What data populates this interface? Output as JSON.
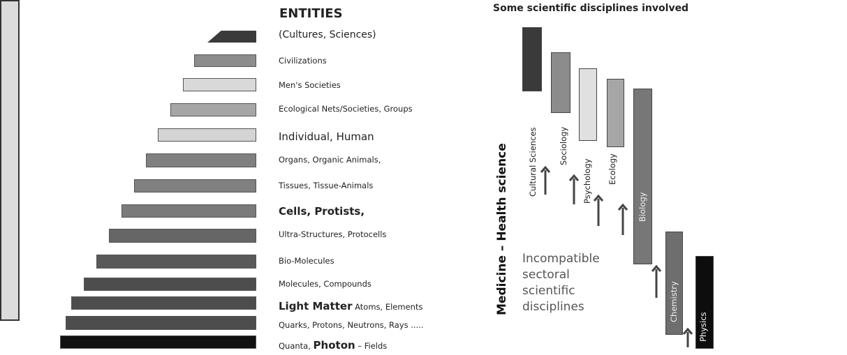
{
  "entities": {
    "title": "ENTITIES",
    "levels": [
      {
        "id": "cultures",
        "label_main": "(Cultures, Sciences)",
        "color": "#3a3a3a"
      },
      {
        "id": "civilizations",
        "label_main": "Civilizations",
        "color": "#8c8c8c"
      },
      {
        "id": "mens-societies",
        "label_main": "Men's Societies",
        "color": "#d9d9d9"
      },
      {
        "id": "ecological",
        "label_main": "Ecological  Nets/Societies, Groups",
        "color": "#a6a6a6"
      },
      {
        "id": "individual",
        "label_main": "Individual, Human",
        "color": "#d4d4d4"
      },
      {
        "id": "organs",
        "label_main": "Organs, Organic Animals,",
        "color": "#808080"
      },
      {
        "id": "tissues",
        "label_main": "Tissues, Tissue-Animals",
        "color": "#808080"
      },
      {
        "id": "cells",
        "label_main": "Cells, Protists,",
        "color": "#7a7a7a"
      },
      {
        "id": "ultra",
        "label_main": "Ultra-Structures, Protocells",
        "color": "#666666"
      },
      {
        "id": "bio-molecules",
        "label_main": "Bio-Molecules",
        "color": "#595959"
      },
      {
        "id": "molecules",
        "label_main": "Molecules, Compounds",
        "color": "#4d4d4d"
      },
      {
        "id": "light-matter",
        "label_big": "Light Matter",
        "label_main": " Atoms, Elements",
        "color": "#4d4d4d"
      },
      {
        "id": "quarks",
        "label_main": "Quarks, Protons, Neutrons, Rays .....",
        "color": "#4d4d4d"
      },
      {
        "id": "quanta",
        "label_pre": "Quanta, ",
        "label_big": "Photon",
        "label_post": "  – Fields",
        "color": "#111111"
      }
    ]
  },
  "disciplines": {
    "title": "Some scientific disciplines  involved",
    "medicine_label": "Medicine – Health science",
    "incompatible_label": "Incompatible\nsectoral\nscientific\ndisciplines",
    "items": [
      {
        "id": "cultural-sciences",
        "label": "Cultural Sciences",
        "color": "#3a3a3a"
      },
      {
        "id": "sociology",
        "label": "Sociology",
        "color": "#8c8c8c"
      },
      {
        "id": "psychology",
        "label": "Psychology",
        "color": "#e0e0e0"
      },
      {
        "id": "ecology",
        "label": "Ecology",
        "color": "#a6a6a6"
      },
      {
        "id": "biology",
        "label": "Biology",
        "color": "#777777"
      },
      {
        "id": "chemistry",
        "label": "Chemistry",
        "color": "#6e6e6e"
      },
      {
        "id": "physics",
        "label": "Physics",
        "color": "#0d0d0d"
      }
    ]
  }
}
